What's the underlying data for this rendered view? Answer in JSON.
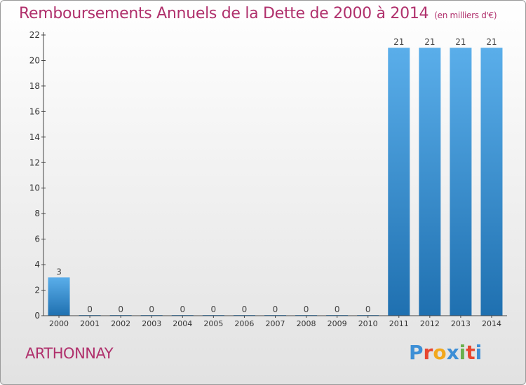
{
  "header": {
    "title": "Remboursements Annuels de la Dette de 2000 à 2014",
    "unit": "(en milliers d'€)"
  },
  "footer": {
    "town": "ARTHONNAY",
    "logo_text": "Proxiti",
    "logo_colors": [
      "#3d8fd6",
      "#e8462f",
      "#f2a81d",
      "#3d8fd6",
      "#6ab04c",
      "#e8462f",
      "#3d8fd6"
    ]
  },
  "colors": {
    "title": "#b0306c",
    "bar_light": "#5aaeea",
    "bar_dark": "#1f70b0",
    "axis": "#444444"
  },
  "chart_data": {
    "type": "bar",
    "title": "Remboursements Annuels de la Dette de 2000 à 2014",
    "xlabel": "",
    "ylabel": "",
    "categories": [
      "2000",
      "2001",
      "2002",
      "2003",
      "2004",
      "2005",
      "2006",
      "2007",
      "2008",
      "2009",
      "2010",
      "2011",
      "2012",
      "2013",
      "2014"
    ],
    "values": [
      3,
      0,
      0,
      0,
      0,
      0,
      0,
      0,
      0,
      0,
      0,
      21,
      21,
      21,
      21
    ],
    "ylim": [
      0,
      22
    ],
    "yticks": [
      0,
      2,
      4,
      6,
      8,
      10,
      12,
      14,
      16,
      18,
      20,
      22
    ],
    "grid": false,
    "data_labels": true
  }
}
